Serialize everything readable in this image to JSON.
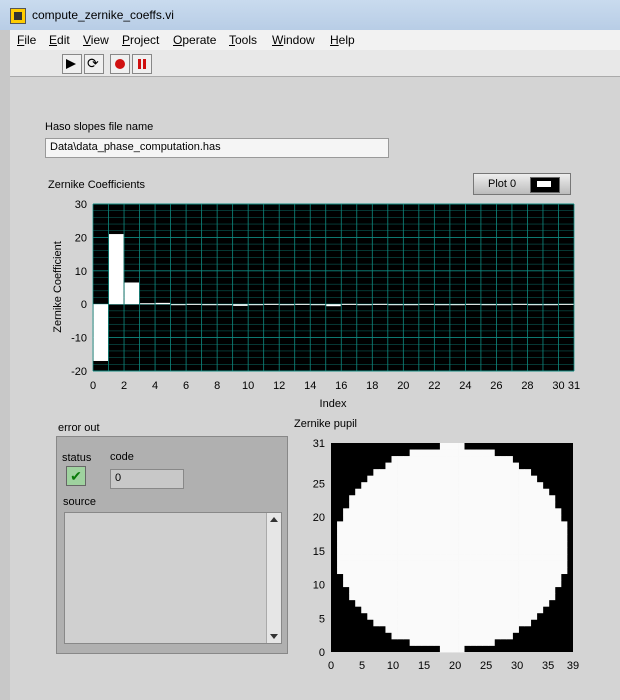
{
  "window": {
    "title": "compute_zernike_coeffs.vi"
  },
  "menu": [
    "File",
    "Edit",
    "View",
    "Project",
    "Operate",
    "Tools",
    "Window",
    "Help"
  ],
  "toolbar": {
    "icons": [
      "run-arrow-icon",
      "run-continuously-icon",
      "abort-icon",
      "pause-icon"
    ]
  },
  "haso": {
    "label": "Haso slopes file name",
    "value": "Data\\data_phase_computation.has"
  },
  "coeffs_graph": {
    "title": "Zernike Coefficients",
    "plot_legend": "Plot 0",
    "xlabel": "Index",
    "ylabel": "Zernike Coefficient",
    "x_ticks": [
      "0",
      "2",
      "4",
      "6",
      "8",
      "10",
      "12",
      "14",
      "16",
      "18",
      "20",
      "22",
      "24",
      "26",
      "28",
      "30",
      "31"
    ],
    "y_ticks": [
      "30",
      "20",
      "10",
      "0",
      "-10",
      "-20"
    ]
  },
  "chart_data": {
    "type": "bar",
    "x": [
      0,
      1,
      2,
      3,
      4,
      5,
      6,
      7,
      8,
      9,
      10,
      11,
      12,
      13,
      14,
      15,
      16,
      17,
      18,
      19,
      20,
      21,
      22,
      23,
      24,
      25,
      26,
      27,
      28,
      29,
      30
    ],
    "values": [
      -17,
      21,
      6.5,
      0.3,
      0.4,
      -0.2,
      0.1,
      -0.1,
      -0.2,
      -0.5,
      -0.2,
      0.1,
      -0.1,
      0.1,
      -0.1,
      -0.6,
      0.1,
      -0.1,
      0.1,
      0.0,
      -0.1,
      0.1,
      0.0,
      -0.1,
      0.1,
      0.0,
      -0.1,
      0.1,
      -0.1,
      0.0,
      0.1
    ],
    "xlabel": "Index",
    "ylabel": "Zernike Coefficient",
    "xlim": [
      0,
      31
    ],
    "ylim": [
      -20,
      30
    ],
    "grid": true,
    "colors": {
      "bars": "#ffffff",
      "background": "#000000",
      "grid": "#0f8a80"
    }
  },
  "error_out": {
    "label": "error out",
    "status_label": "status",
    "code_label": "code",
    "code_value": "0",
    "source_label": "source"
  },
  "pupil": {
    "title": "Zernike pupil",
    "x_ticks": [
      "0",
      "5",
      "10",
      "15",
      "20",
      "25",
      "30",
      "35",
      "39"
    ],
    "y_ticks": [
      "31",
      "25",
      "20",
      "15",
      "10",
      "5",
      "0"
    ],
    "grid_cols": 40,
    "grid_rows": 32
  }
}
